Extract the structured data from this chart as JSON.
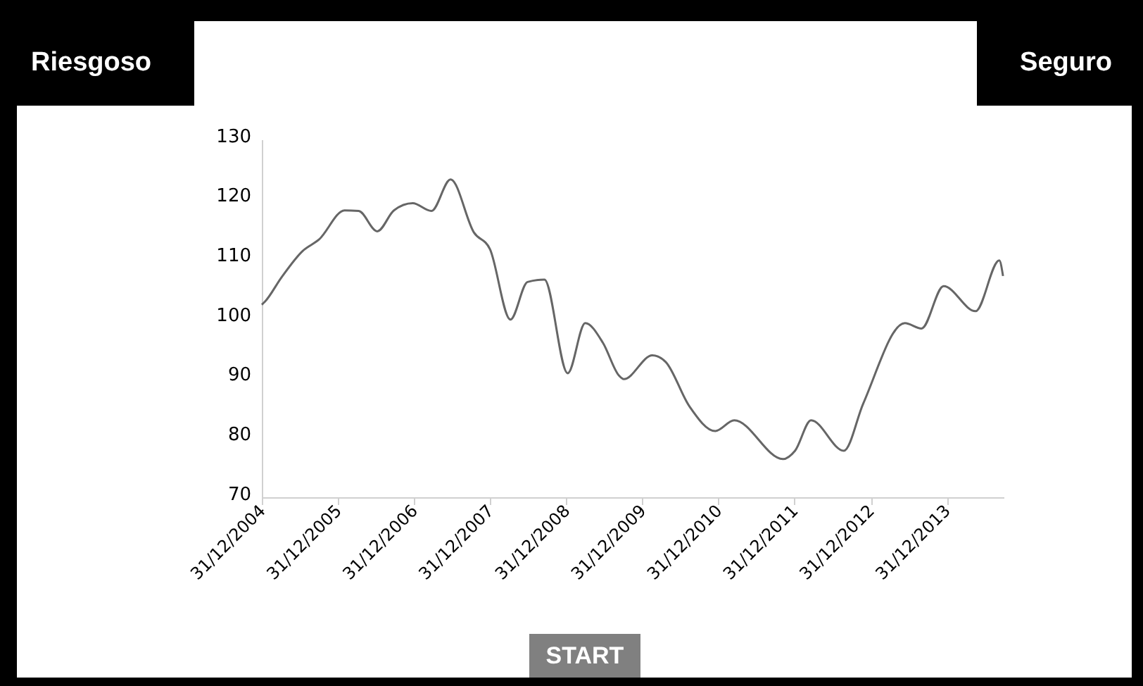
{
  "chart_data": {
    "type": "line",
    "annotations": [
      "Riesgoso",
      "Seguro",
      "START"
    ],
    "x": [
      "2004-12-31",
      "2005-01-15",
      "2005-04-05",
      "2005-07-15",
      "2005-10-01",
      "2006-02-01",
      "2006-04-10",
      "2006-07-08",
      "2006-09-26",
      "2006-12-25",
      "2007-03-25",
      "2007-06-25",
      "2007-10-15",
      "2007-12-31",
      "2008-04-07",
      "2008-06-28",
      "2008-09-17",
      "2009-01-07",
      "2009-04-01",
      "2009-06-25",
      "2009-09-10",
      "2009-10-03",
      "2010-02-17",
      "2010-04-22",
      "2010-08-13",
      "2010-12-16",
      "2011-03-17",
      "2011-11-06",
      "2012-01-03",
      "2012-03-20",
      "2012-08-24",
      "2012-11-25",
      "2013-06-13",
      "2013-09-01",
      "2013-12-16",
      "2014-05-18",
      "2014-09-09",
      "2014-09-27"
    ],
    "series": [
      {
        "color": "#666666",
        "values": [
          102.3,
          102.8,
          106.9,
          111.3,
          113.2,
          118.1,
          118.0,
          114.6,
          118.1,
          119.3,
          118.0,
          123.3,
          114.4,
          111.6,
          99.8,
          106.1,
          106.5,
          90.8,
          99.2,
          95.9,
          90.4,
          89.8,
          93.8,
          92.7,
          85.3,
          81.1,
          82.9,
          76.4,
          77.8,
          82.9,
          77.8,
          85.7,
          99.2,
          98.3,
          105.4,
          101.2,
          109.7,
          107.1
        ]
      }
    ],
    "xlim": [
      "2004-12-31",
      "2014-09-30"
    ],
    "xticks": [
      {
        "value": "2004-12-31",
        "label": "31/12/2004"
      },
      {
        "value": "2005-12-31",
        "label": "31/12/2005"
      },
      {
        "value": "2006-12-31",
        "label": "31/12/2006"
      },
      {
        "value": "2007-12-31",
        "label": "31/12/2007"
      },
      {
        "value": "2008-12-31",
        "label": "31/12/2008"
      },
      {
        "value": "2009-12-31",
        "label": "31/12/2009"
      },
      {
        "value": "2010-12-31",
        "label": "31/12/2010"
      },
      {
        "value": "2011-12-31",
        "label": "31/12/2011"
      },
      {
        "value": "2012-12-31",
        "label": "31/12/2012"
      },
      {
        "value": "2013-12-31",
        "label": "31/12/2013"
      }
    ],
    "ylim": [
      70,
      130
    ],
    "yticks": [
      70,
      80,
      90,
      100,
      110,
      120,
      130
    ],
    "grid": false,
    "marker": "none",
    "line_style": "solid"
  }
}
